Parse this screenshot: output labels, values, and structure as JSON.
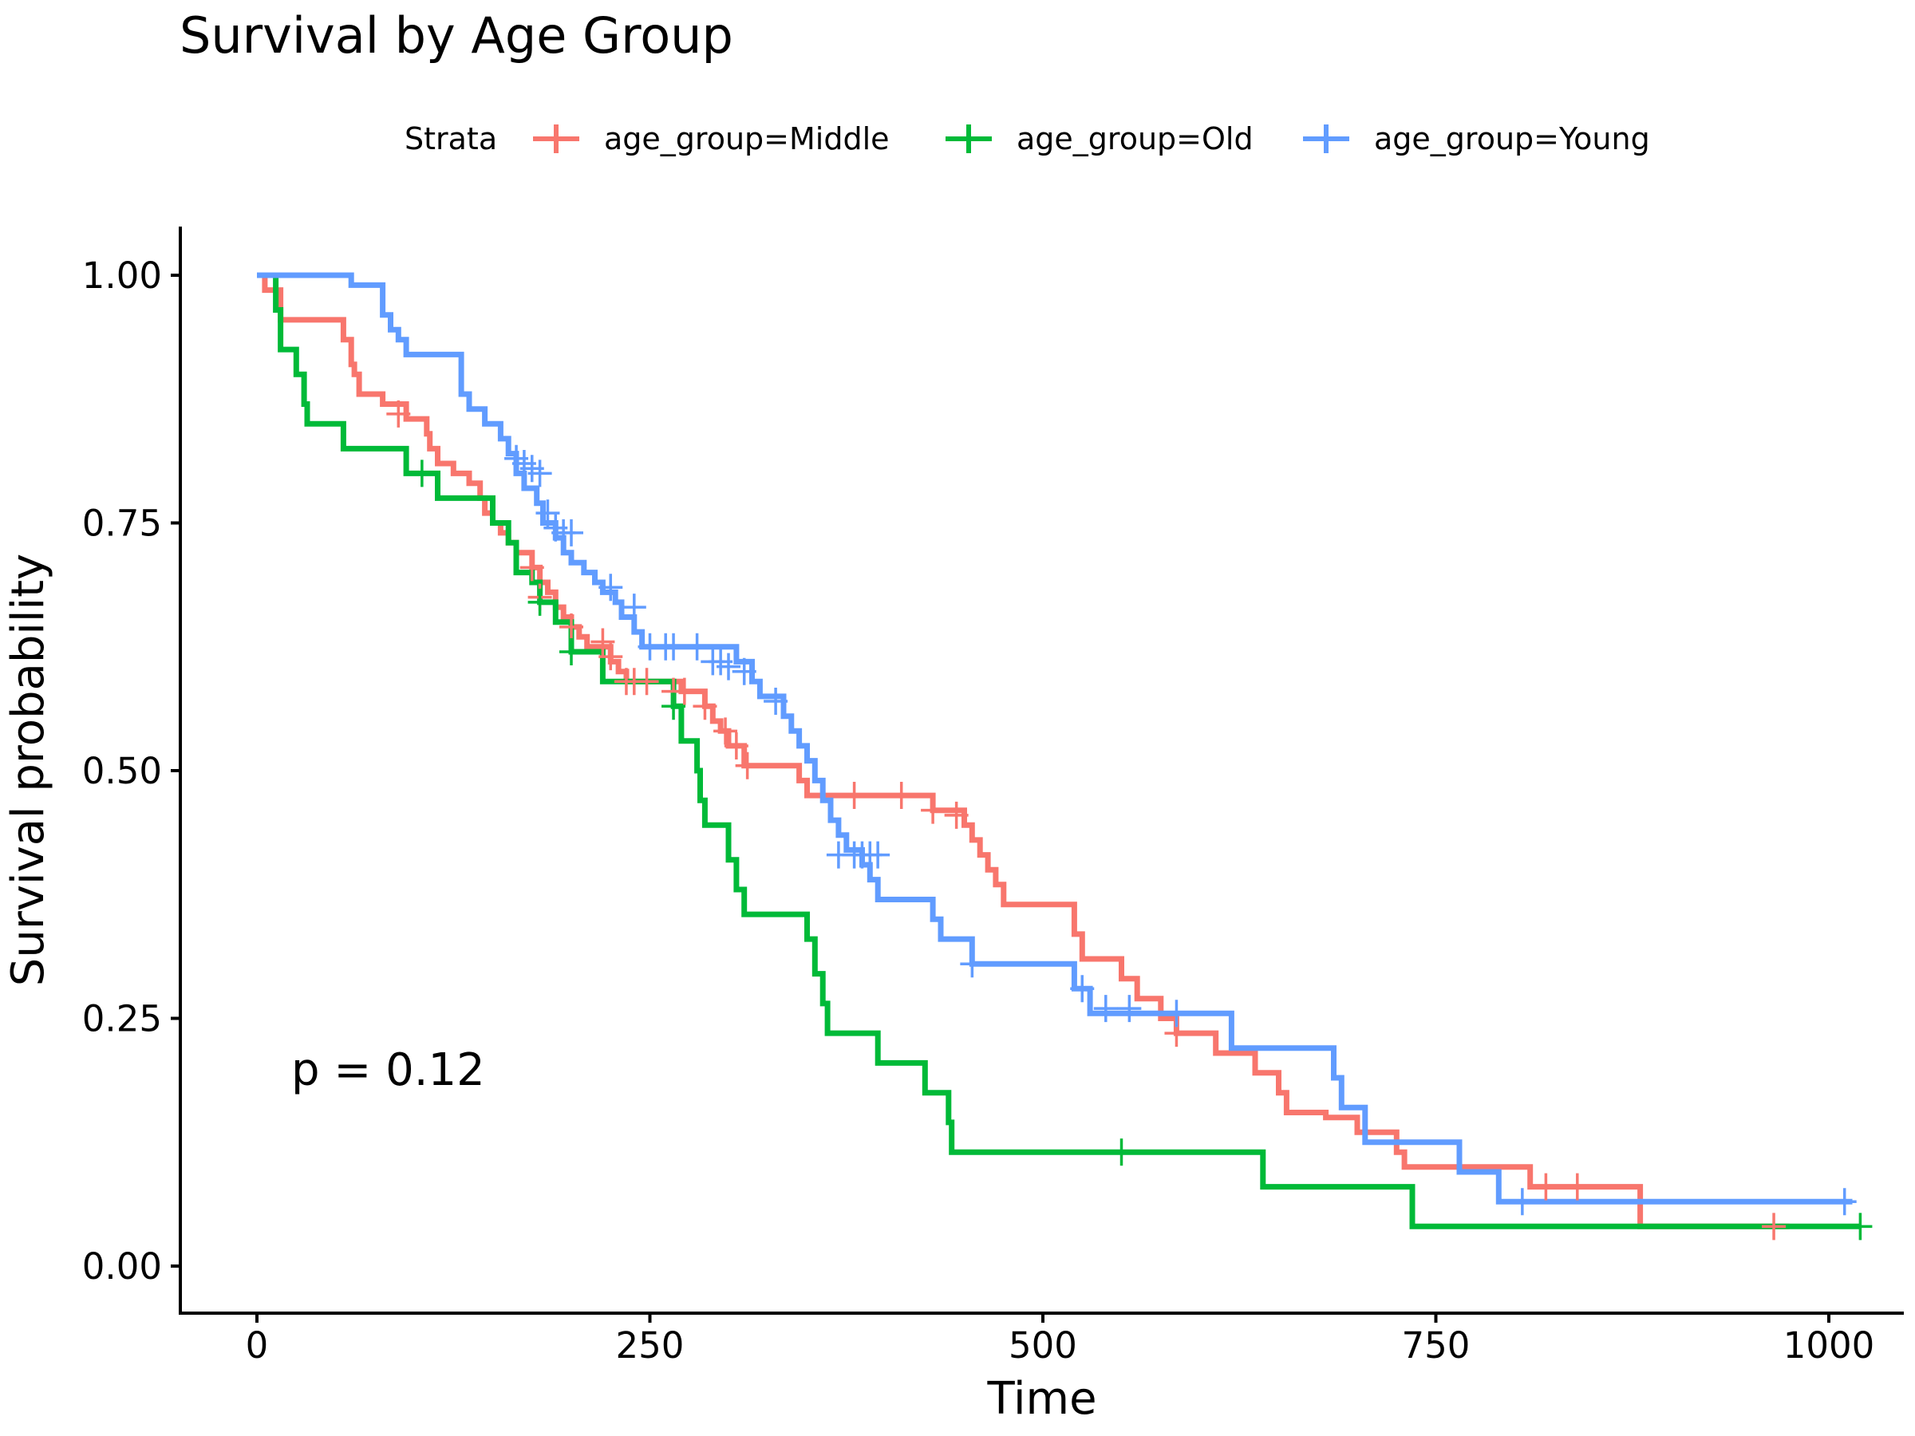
{
  "chart_data": {
    "type": "line",
    "title": "Survival by Age Group",
    "xlabel": "Time",
    "ylabel": "Survival probability",
    "xlim": [
      0,
      1000
    ],
    "ylim": [
      0,
      1
    ],
    "x_ticks": [
      0,
      250,
      500,
      750,
      1000
    ],
    "x_tick_labels": [
      "0",
      "250",
      "500",
      "750",
      "1000"
    ],
    "y_ticks": [
      0,
      0.25,
      0.5,
      0.75,
      1
    ],
    "y_tick_labels": [
      "0.00",
      "0.25",
      "0.50",
      "0.75",
      "1.00"
    ],
    "grid": false,
    "legend_title": "Strata",
    "legend_position": "top",
    "annotation": "p = 0.12",
    "series": [
      {
        "name": "age_group=Middle",
        "color": "#F8766D",
        "steps": [
          [
            0,
            1.0
          ],
          [
            5,
            0.985
          ],
          [
            15,
            0.955
          ],
          [
            55,
            0.935
          ],
          [
            60,
            0.91
          ],
          [
            62,
            0.9
          ],
          [
            65,
            0.88
          ],
          [
            80,
            0.87
          ],
          [
            95,
            0.855
          ],
          [
            108,
            0.84
          ],
          [
            110,
            0.825
          ],
          [
            115,
            0.81
          ],
          [
            125,
            0.8
          ],
          [
            135,
            0.79
          ],
          [
            142,
            0.775
          ],
          [
            145,
            0.76
          ],
          [
            150,
            0.75
          ],
          [
            155,
            0.74
          ],
          [
            160,
            0.73
          ],
          [
            165,
            0.72
          ],
          [
            175,
            0.705
          ],
          [
            180,
            0.69
          ],
          [
            185,
            0.68
          ],
          [
            190,
            0.665
          ],
          [
            195,
            0.655
          ],
          [
            200,
            0.645
          ],
          [
            205,
            0.635
          ],
          [
            210,
            0.625
          ],
          [
            225,
            0.61
          ],
          [
            230,
            0.6
          ],
          [
            235,
            0.59
          ],
          [
            270,
            0.58
          ],
          [
            285,
            0.565
          ],
          [
            290,
            0.55
          ],
          [
            295,
            0.54
          ],
          [
            300,
            0.525
          ],
          [
            310,
            0.505
          ],
          [
            345,
            0.49
          ],
          [
            350,
            0.475
          ],
          [
            430,
            0.46
          ],
          [
            450,
            0.445
          ],
          [
            455,
            0.43
          ],
          [
            460,
            0.415
          ],
          [
            465,
            0.4
          ],
          [
            470,
            0.385
          ],
          [
            475,
            0.365
          ],
          [
            520,
            0.335
          ],
          [
            525,
            0.31
          ],
          [
            550,
            0.29
          ],
          [
            560,
            0.27
          ],
          [
            575,
            0.25
          ],
          [
            585,
            0.235
          ],
          [
            610,
            0.215
          ],
          [
            635,
            0.195
          ],
          [
            650,
            0.175
          ],
          [
            655,
            0.155
          ],
          [
            680,
            0.15
          ],
          [
            700,
            0.135
          ],
          [
            725,
            0.115
          ],
          [
            730,
            0.1
          ],
          [
            810,
            0.08
          ],
          [
            880,
            0.04
          ],
          [
            975,
            0.04
          ]
        ],
        "censored": [
          [
            90,
            0.86
          ],
          [
            175,
            0.705
          ],
          [
            180,
            0.675
          ],
          [
            200,
            0.645
          ],
          [
            220,
            0.63
          ],
          [
            225,
            0.615
          ],
          [
            235,
            0.59
          ],
          [
            240,
            0.59
          ],
          [
            248,
            0.59
          ],
          [
            265,
            0.58
          ],
          [
            272,
            0.58
          ],
          [
            285,
            0.565
          ],
          [
            298,
            0.54
          ],
          [
            305,
            0.525
          ],
          [
            312,
            0.505
          ],
          [
            380,
            0.475
          ],
          [
            410,
            0.475
          ],
          [
            430,
            0.46
          ],
          [
            445,
            0.455
          ],
          [
            585,
            0.235
          ],
          [
            820,
            0.08
          ],
          [
            840,
            0.08
          ],
          [
            965,
            0.04
          ]
        ]
      },
      {
        "name": "age_group=Old",
        "color": "#00BA38",
        "steps": [
          [
            0,
            1.0
          ],
          [
            12,
            0.965
          ],
          [
            15,
            0.925
          ],
          [
            25,
            0.9
          ],
          [
            30,
            0.87
          ],
          [
            32,
            0.85
          ],
          [
            55,
            0.825
          ],
          [
            95,
            0.8
          ],
          [
            115,
            0.775
          ],
          [
            150,
            0.75
          ],
          [
            160,
            0.73
          ],
          [
            165,
            0.7
          ],
          [
            175,
            0.69
          ],
          [
            180,
            0.67
          ],
          [
            190,
            0.65
          ],
          [
            200,
            0.62
          ],
          [
            220,
            0.59
          ],
          [
            265,
            0.565
          ],
          [
            270,
            0.53
          ],
          [
            280,
            0.5
          ],
          [
            282,
            0.47
          ],
          [
            285,
            0.445
          ],
          [
            300,
            0.41
          ],
          [
            305,
            0.38
          ],
          [
            310,
            0.355
          ],
          [
            350,
            0.33
          ],
          [
            355,
            0.295
          ],
          [
            360,
            0.265
          ],
          [
            363,
            0.235
          ],
          [
            395,
            0.205
          ],
          [
            425,
            0.175
          ],
          [
            440,
            0.145
          ],
          [
            442,
            0.115
          ],
          [
            640,
            0.08
          ],
          [
            735,
            0.04
          ],
          [
            1020,
            0.04
          ]
        ],
        "censored": [
          [
            105,
            0.8
          ],
          [
            180,
            0.67
          ],
          [
            200,
            0.62
          ],
          [
            265,
            0.565
          ],
          [
            550,
            0.115
          ],
          [
            1020,
            0.04
          ]
        ]
      },
      {
        "name": "age_group=Young",
        "color": "#619CFF",
        "steps": [
          [
            0,
            1.0
          ],
          [
            60,
            0.99
          ],
          [
            80,
            0.96
          ],
          [
            85,
            0.945
          ],
          [
            90,
            0.935
          ],
          [
            95,
            0.92
          ],
          [
            130,
            0.88
          ],
          [
            135,
            0.865
          ],
          [
            145,
            0.85
          ],
          [
            155,
            0.835
          ],
          [
            160,
            0.82
          ],
          [
            165,
            0.8
          ],
          [
            170,
            0.785
          ],
          [
            178,
            0.77
          ],
          [
            182,
            0.75
          ],
          [
            190,
            0.735
          ],
          [
            195,
            0.72
          ],
          [
            200,
            0.71
          ],
          [
            208,
            0.7
          ],
          [
            215,
            0.69
          ],
          [
            220,
            0.68
          ],
          [
            228,
            0.67
          ],
          [
            232,
            0.655
          ],
          [
            240,
            0.64
          ],
          [
            245,
            0.625
          ],
          [
            305,
            0.61
          ],
          [
            315,
            0.59
          ],
          [
            320,
            0.575
          ],
          [
            335,
            0.555
          ],
          [
            340,
            0.54
          ],
          [
            345,
            0.525
          ],
          [
            350,
            0.51
          ],
          [
            355,
            0.49
          ],
          [
            360,
            0.47
          ],
          [
            365,
            0.45
          ],
          [
            370,
            0.435
          ],
          [
            375,
            0.42
          ],
          [
            385,
            0.405
          ],
          [
            390,
            0.39
          ],
          [
            395,
            0.37
          ],
          [
            430,
            0.35
          ],
          [
            435,
            0.33
          ],
          [
            455,
            0.305
          ],
          [
            520,
            0.28
          ],
          [
            530,
            0.255
          ],
          [
            620,
            0.22
          ],
          [
            685,
            0.19
          ],
          [
            690,
            0.16
          ],
          [
            705,
            0.125
          ],
          [
            765,
            0.095
          ],
          [
            790,
            0.065
          ],
          [
            1015,
            0.065
          ]
        ],
        "censored": [
          [
            165,
            0.815
          ],
          [
            170,
            0.81
          ],
          [
            175,
            0.805
          ],
          [
            180,
            0.8
          ],
          [
            185,
            0.76
          ],
          [
            190,
            0.745
          ],
          [
            195,
            0.74
          ],
          [
            200,
            0.74
          ],
          [
            225,
            0.685
          ],
          [
            240,
            0.665
          ],
          [
            250,
            0.625
          ],
          [
            260,
            0.625
          ],
          [
            265,
            0.625
          ],
          [
            280,
            0.625
          ],
          [
            290,
            0.61
          ],
          [
            295,
            0.61
          ],
          [
            300,
            0.605
          ],
          [
            310,
            0.6
          ],
          [
            330,
            0.57
          ],
          [
            370,
            0.415
          ],
          [
            380,
            0.415
          ],
          [
            385,
            0.415
          ],
          [
            390,
            0.415
          ],
          [
            395,
            0.415
          ],
          [
            455,
            0.305
          ],
          [
            525,
            0.28
          ],
          [
            540,
            0.26
          ],
          [
            555,
            0.26
          ],
          [
            585,
            0.255
          ],
          [
            805,
            0.065
          ],
          [
            1010,
            0.065
          ]
        ]
      }
    ]
  }
}
